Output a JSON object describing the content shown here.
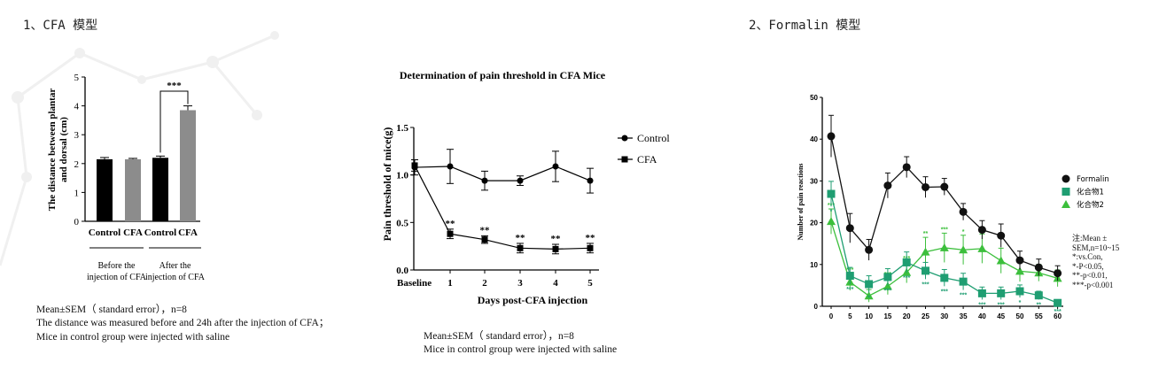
{
  "sections": {
    "cfa_title": "1、CFA 模型",
    "formalin_title": "2、Formalin 模型"
  },
  "colors": {
    "bar_black": "#000000",
    "bar_gray": "#8c8c8c",
    "formalin": "#111111",
    "compound1": "#1f9e72",
    "compound2": "#3cbf3c"
  },
  "chart_data": [
    {
      "type": "bar",
      "ylabel_line1": "The distance between plantar",
      "ylabel_line2": "and dorsal (cm)",
      "ylim": [
        0,
        5
      ],
      "yticks": [
        "0",
        "1",
        "2",
        "3",
        "4",
        "5"
      ],
      "categories": [
        "Control",
        "CFA",
        "Control",
        "CFA"
      ],
      "values": [
        2.15,
        2.15,
        2.2,
        3.85
      ],
      "errors": [
        0.06,
        0.03,
        0.06,
        0.15
      ],
      "bar_colors": [
        "#000000",
        "#8c8c8c",
        "#000000",
        "#8c8c8c"
      ],
      "significance": "***",
      "groups": [
        {
          "line1": "Before the",
          "line2": "injection of CFA"
        },
        {
          "line1": "After the",
          "line2": "injection of CFA"
        }
      ],
      "notes": [
        "Mean±SEM（ standard error），n=8",
        "The distance was measured before and 24h after the injection of CFA；",
        "Mice in control group were injected with saline"
      ]
    },
    {
      "type": "line",
      "title": "Determination of pain threshold in CFA Mice",
      "ylabel": "Pain threshold of mice(g)",
      "xlabel": "Days post-CFA injection",
      "ylim": [
        0,
        1.5
      ],
      "yticks": [
        "0.0",
        "0.5",
        "1.0",
        "1.5"
      ],
      "x": [
        "Baseline",
        "1",
        "2",
        "3",
        "4",
        "5"
      ],
      "series": [
        {
          "name": "Control",
          "marker": "circle",
          "values": [
            1.08,
            1.09,
            0.94,
            0.94,
            1.09,
            0.94
          ],
          "errors": [
            0.08,
            0.18,
            0.1,
            0.05,
            0.16,
            0.13
          ]
        },
        {
          "name": "CFA",
          "marker": "square",
          "values": [
            1.1,
            0.38,
            0.32,
            0.23,
            0.22,
            0.23
          ],
          "errors": [
            0.06,
            0.05,
            0.04,
            0.05,
            0.05,
            0.05
          ],
          "significance": [
            "",
            "**",
            "**",
            "**",
            "**",
            "**"
          ]
        }
      ],
      "notes": [
        "Mean±SEM（ standard error），n=8",
        "Mice in control group were injected with saline"
      ]
    },
    {
      "type": "line",
      "ylabel": "Number of pain reactions",
      "ylim": [
        0,
        50
      ],
      "yticks": [
        "0",
        "10",
        "20",
        "30",
        "40",
        "50"
      ],
      "x": [
        0,
        5,
        10,
        15,
        20,
        25,
        30,
        35,
        40,
        45,
        50,
        55,
        60
      ],
      "series": [
        {
          "name": "Formalin",
          "marker": "circle",
          "color": "#111111",
          "values": [
            40.7,
            18.7,
            13.5,
            28.9,
            33.3,
            28.5,
            28.6,
            22.6,
            18.3,
            16.9,
            11.0,
            9.3,
            7.9
          ],
          "errors": [
            5,
            3.5,
            2.5,
            3,
            2.5,
            2.5,
            2,
            2,
            2.2,
            2.8,
            2.2,
            2,
            1.8
          ]
        },
        {
          "name": "化合物1",
          "marker": "square",
          "color": "#1f9e72",
          "values": [
            26.9,
            7.3,
            5.3,
            7.0,
            10.5,
            8.5,
            6.8,
            5.9,
            3.1,
            3.1,
            3.6,
            2.6,
            0.8
          ],
          "errors": [
            3,
            2,
            2,
            2,
            2.5,
            2,
            2,
            2,
            1.5,
            1.5,
            1.5,
            1,
            0.8
          ],
          "significance": [
            "*",
            "***",
            "*",
            "***",
            "***",
            "***",
            "***",
            "***",
            "***",
            "***",
            "*",
            "**",
            "***"
          ]
        },
        {
          "name": "化合物2",
          "marker": "triangle",
          "color": "#3cbf3c",
          "values": [
            20.3,
            5.8,
            2.5,
            4.8,
            8.1,
            13.0,
            14.0,
            13.5,
            13.8,
            10.9,
            8.4,
            8.0,
            6.7
          ],
          "errors": [
            3,
            2,
            1.5,
            2,
            2.5,
            3.5,
            3.5,
            3.5,
            3.5,
            3,
            2.5,
            2,
            2
          ],
          "significance": [
            "***",
            "***",
            "***",
            "***",
            "***",
            "**",
            "***",
            "*",
            "",
            "",
            "",
            "",
            ""
          ]
        }
      ],
      "notes": [
        "注:Mean ±",
        "SEM,n=10~15",
        "*:vs.Con,",
        "*-P<0.05,",
        "**-p<0.01,",
        "***-p<0.001"
      ]
    }
  ]
}
